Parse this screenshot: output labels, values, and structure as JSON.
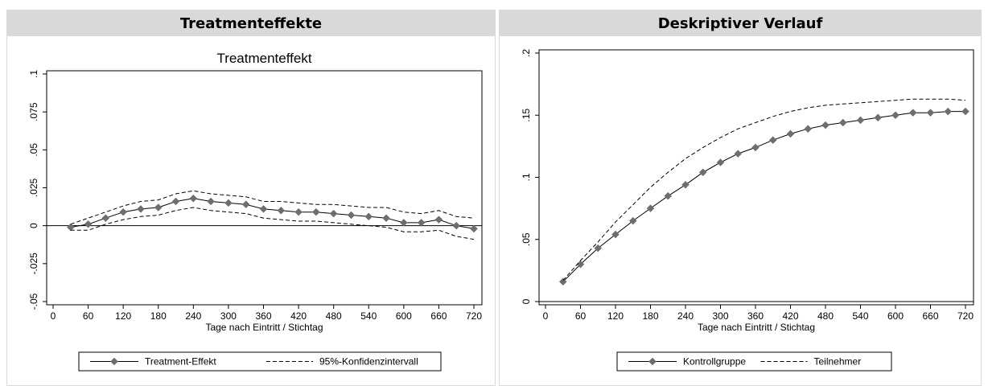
{
  "panels": [
    {
      "header": "Treatmenteffekte"
    },
    {
      "header": "Deskriptiver Verlauf"
    }
  ],
  "colors": {
    "marker": "#6e6e6e",
    "line": "#000000",
    "header_bg": "#d9d9d9"
  },
  "chart_data": [
    {
      "type": "line",
      "title": "Treatmenteffekt",
      "xlabel": "Tage nach Eintritt / Stichtag",
      "ylabel": "",
      "xlim": [
        0,
        720
      ],
      "ylim": [
        -0.05,
        0.1
      ],
      "x_ticks": [
        0,
        60,
        120,
        180,
        240,
        300,
        360,
        420,
        480,
        540,
        600,
        660,
        720
      ],
      "y_ticks": [
        -0.05,
        -0.025,
        0,
        0.025,
        0.05,
        0.075,
        0.1
      ],
      "y_tick_labels": [
        "-.05",
        "-.025",
        "0",
        ".025",
        ".05",
        ".075",
        ".1"
      ],
      "zero_line": true,
      "legend": [
        "Treatment-Effekt",
        "95%-Konfidenzintervall"
      ],
      "legend_position": "bottom",
      "x": [
        30,
        60,
        90,
        120,
        150,
        180,
        210,
        240,
        270,
        300,
        330,
        360,
        390,
        420,
        450,
        480,
        510,
        540,
        570,
        600,
        630,
        660,
        690,
        720
      ],
      "series": [
        {
          "name": "Treatment-Effekt",
          "style": "solid-diamond",
          "values": [
            -0.001,
            0.001,
            0.005,
            0.009,
            0.011,
            0.012,
            0.016,
            0.018,
            0.016,
            0.015,
            0.014,
            0.011,
            0.01,
            0.009,
            0.009,
            0.008,
            0.007,
            0.006,
            0.005,
            0.002,
            0.002,
            0.004,
            0.0,
            -0.002
          ]
        },
        {
          "name": "95%-Konfidenzintervall",
          "style": "dashed",
          "values": [
            0.001,
            0.005,
            0.009,
            0.013,
            0.016,
            0.017,
            0.021,
            0.023,
            0.021,
            0.02,
            0.019,
            0.016,
            0.016,
            0.015,
            0.014,
            0.014,
            0.013,
            0.012,
            0.012,
            0.009,
            0.008,
            0.01,
            0.006,
            0.005
          ]
        },
        {
          "name": "",
          "style": "dashed",
          "values": [
            -0.003,
            -0.003,
            0.001,
            0.004,
            0.006,
            0.007,
            0.01,
            0.012,
            0.01,
            0.009,
            0.008,
            0.005,
            0.004,
            0.003,
            0.003,
            0.002,
            0.001,
            0.0,
            -0.001,
            -0.004,
            -0.004,
            -0.003,
            -0.007,
            -0.009
          ]
        }
      ]
    },
    {
      "type": "line",
      "title": "",
      "xlabel": "Tage nach Eintritt / Stichtag",
      "ylabel": "",
      "xlim": [
        0,
        720
      ],
      "ylim": [
        0,
        0.2
      ],
      "x_ticks": [
        0,
        60,
        120,
        180,
        240,
        300,
        360,
        420,
        480,
        540,
        600,
        660,
        720
      ],
      "y_ticks": [
        0,
        0.05,
        0.1,
        0.15,
        0.2
      ],
      "y_tick_labels": [
        "0",
        ".05",
        ".1",
        ".15",
        ".2"
      ],
      "zero_line": true,
      "legend": [
        "Kontrollgruppe",
        "Teilnehmer"
      ],
      "legend_position": "bottom",
      "x": [
        30,
        60,
        90,
        120,
        150,
        180,
        210,
        240,
        270,
        300,
        330,
        360,
        390,
        420,
        450,
        480,
        510,
        540,
        570,
        600,
        630,
        660,
        690,
        720
      ],
      "series": [
        {
          "name": "Kontrollgruppe",
          "style": "solid-diamond",
          "values": [
            0.016,
            0.03,
            0.043,
            0.054,
            0.065,
            0.075,
            0.085,
            0.094,
            0.104,
            0.112,
            0.119,
            0.124,
            0.13,
            0.135,
            0.139,
            0.142,
            0.144,
            0.146,
            0.148,
            0.15,
            0.152,
            0.152,
            0.153,
            0.153
          ]
        },
        {
          "name": "Teilnehmer",
          "style": "dashed",
          "values": [
            0.017,
            0.033,
            0.048,
            0.064,
            0.078,
            0.092,
            0.104,
            0.115,
            0.124,
            0.132,
            0.139,
            0.144,
            0.149,
            0.153,
            0.156,
            0.158,
            0.159,
            0.16,
            0.161,
            0.162,
            0.163,
            0.163,
            0.163,
            0.162
          ]
        }
      ]
    }
  ]
}
